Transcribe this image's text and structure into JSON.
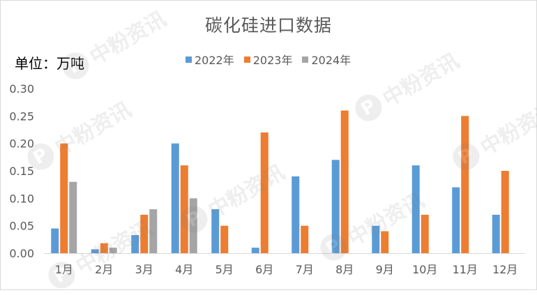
{
  "watermark": {
    "text": "中粉资讯",
    "logo_letter": "P"
  },
  "chart_data": {
    "type": "bar",
    "title": "碳化硅进口数据",
    "unit_label": "单位：万吨",
    "categories": [
      "1月",
      "2月",
      "3月",
      "4月",
      "5月",
      "6月",
      "7月",
      "8月",
      "9月",
      "10月",
      "11月",
      "12月"
    ],
    "series": [
      {
        "name": "2022年",
        "color": "#5b9bd5",
        "values": [
          0.045,
          0.007,
          0.033,
          0.2,
          0.08,
          0.01,
          0.14,
          0.17,
          0.05,
          0.16,
          0.12,
          0.07
        ]
      },
      {
        "name": "2023年",
        "color": "#ed7d31",
        "values": [
          0.2,
          0.018,
          0.07,
          0.16,
          0.05,
          0.22,
          0.05,
          0.26,
          0.04,
          0.07,
          0.25,
          0.15
        ]
      },
      {
        "name": "2024年",
        "color": "#a5a5a5",
        "values": [
          0.13,
          0.01,
          0.08,
          0.1,
          null,
          null,
          null,
          null,
          null,
          null,
          null,
          null
        ]
      }
    ],
    "ylim": [
      0,
      0.3
    ],
    "yticks": [
      "0.00",
      "0.05",
      "0.10",
      "0.15",
      "0.20",
      "0.25",
      "0.30"
    ],
    "legend_position": "top",
    "grid": false
  }
}
